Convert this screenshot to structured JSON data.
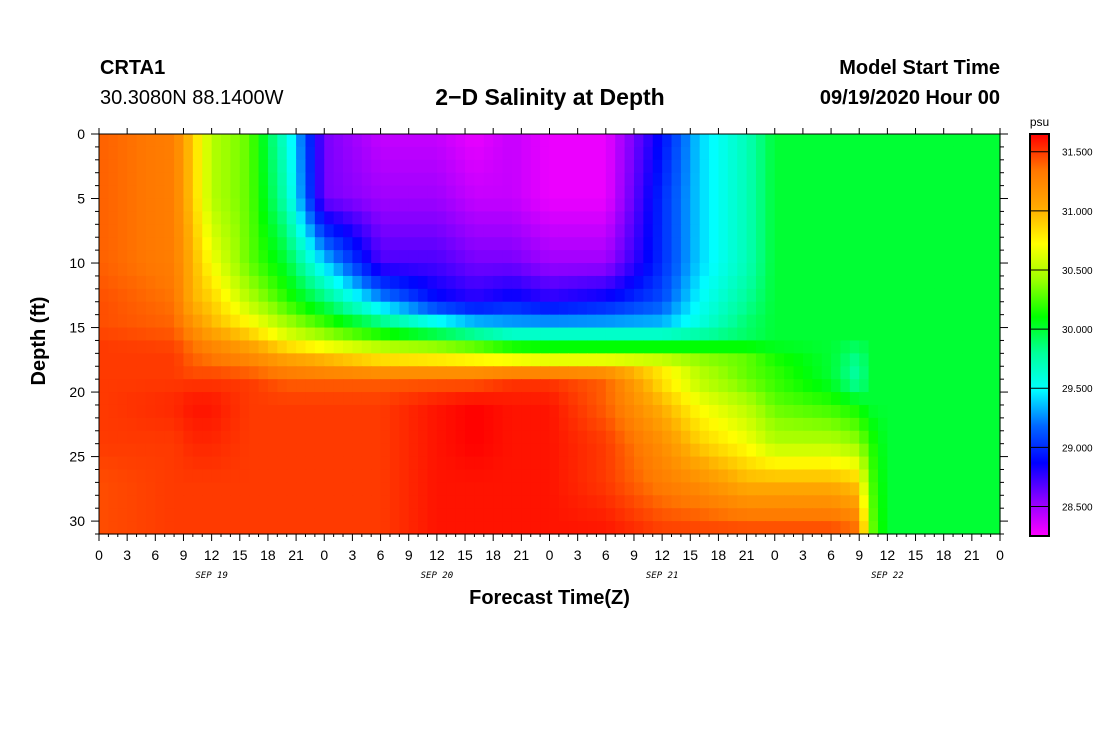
{
  "header": {
    "station": "CRTA1",
    "coords": "30.3080N 88.1400W",
    "title": "2−D Salinity at Depth",
    "model_start_label": "Model Start Time",
    "model_start_value": "09/19/2020 Hour 00"
  },
  "chart_data": {
    "type": "heatmap",
    "title": "2−D Salinity at Depth",
    "xlabel": "Forecast Time(Z)",
    "ylabel": "Depth (ft)",
    "units": "psu",
    "x_hours_range": [
      0,
      96
    ],
    "ylim": [
      0,
      31
    ],
    "y_inverted": true,
    "x_tick_labels": [
      "0",
      "3",
      "6",
      "9",
      "12",
      "15",
      "18",
      "21",
      "0",
      "3",
      "6",
      "9",
      "12",
      "15",
      "18",
      "21",
      "0",
      "3",
      "6",
      "9",
      "12",
      "15",
      "18",
      "21",
      "0",
      "3",
      "6",
      "9",
      "12",
      "15",
      "18",
      "21",
      "0"
    ],
    "y_tick_labels": [
      "0",
      "5",
      "10",
      "15",
      "20",
      "25",
      "30"
    ],
    "date_labels": [
      "SEP 19",
      "SEP 20",
      "SEP 21",
      "SEP 22"
    ],
    "colorbar": {
      "range": [
        28.25,
        31.65
      ],
      "tick_labels": [
        "31.500",
        "31.000",
        "30.500",
        "30.000",
        "29.500",
        "29.000",
        "28.500"
      ],
      "colors": [
        "#ff00ff",
        "#8800ff",
        "#0000ff",
        "#0066ff",
        "#00ffff",
        "#00ff99",
        "#00ff00",
        "#99ff00",
        "#ffff00",
        "#ffaa00",
        "#ff7700",
        "#ff0000"
      ]
    },
    "time_hours": [
      0,
      8,
      10,
      12,
      16,
      20,
      24,
      30,
      36,
      40,
      44,
      48,
      54,
      60,
      64,
      69,
      72,
      78,
      81,
      82,
      84
    ],
    "depth_ft": [
      0,
      5,
      10,
      13,
      15,
      16,
      17,
      18,
      19,
      21,
      24,
      27,
      31
    ],
    "salinity": [
      [
        31.4,
        31.3,
        30.9,
        30.5,
        30.3,
        29.6,
        28.6,
        28.4,
        28.4,
        28.3,
        28.4,
        28.3,
        28.3,
        28.9,
        29.4,
        29.7,
        30.0,
        30.0,
        30.0,
        30.0,
        30.0
      ],
      [
        31.4,
        31.3,
        30.9,
        30.5,
        30.3,
        29.7,
        28.6,
        28.5,
        28.5,
        28.4,
        28.4,
        28.3,
        28.3,
        29.0,
        29.4,
        29.7,
        30.0,
        30.0,
        30.0,
        30.0,
        30.0
      ],
      [
        31.4,
        31.3,
        31.0,
        30.7,
        30.3,
        30.0,
        29.4,
        28.7,
        28.7,
        28.6,
        28.6,
        28.5,
        28.5,
        29.0,
        29.4,
        29.7,
        30.0,
        30.0,
        30.0,
        30.0,
        30.0
      ],
      [
        31.45,
        31.35,
        31.0,
        30.9,
        30.5,
        30.2,
        29.9,
        29.3,
        28.9,
        28.8,
        28.9,
        28.8,
        28.9,
        29.1,
        29.5,
        29.8,
        30.0,
        30.0,
        30.0,
        30.0,
        30.0
      ],
      [
        31.45,
        31.4,
        31.2,
        31.0,
        30.8,
        30.5,
        30.3,
        30.0,
        29.7,
        29.5,
        29.4,
        29.4,
        29.4,
        29.4,
        29.6,
        29.9,
        30.0,
        30.0,
        30.0,
        30.0,
        30.0
      ],
      [
        31.5,
        31.45,
        31.3,
        31.2,
        31.0,
        30.7,
        30.5,
        30.3,
        30.2,
        30.1,
        29.9,
        29.9,
        29.9,
        29.9,
        29.9,
        29.9,
        30.0,
        30.0,
        30.0,
        30.0,
        30.0
      ],
      [
        31.5,
        31.5,
        31.4,
        31.3,
        31.2,
        31.0,
        30.9,
        30.7,
        30.6,
        30.5,
        30.4,
        30.3,
        30.3,
        30.3,
        30.3,
        30.3,
        30.1,
        30.0,
        29.8,
        30.0,
        30.0
      ],
      [
        31.5,
        31.5,
        31.4,
        31.4,
        31.3,
        31.2,
        31.1,
        31.0,
        31.0,
        31.0,
        31.0,
        31.0,
        31.0,
        30.8,
        30.5,
        30.3,
        30.2,
        30.0,
        29.8,
        30.0,
        30.0
      ],
      [
        31.5,
        31.5,
        31.5,
        31.5,
        31.5,
        31.4,
        31.4,
        31.4,
        31.4,
        31.4,
        31.5,
        31.5,
        31.4,
        30.8,
        30.5,
        30.3,
        30.2,
        30.0,
        29.7,
        30.0,
        30.0
      ],
      [
        31.5,
        31.55,
        31.6,
        31.6,
        31.5,
        31.5,
        31.5,
        31.5,
        31.6,
        31.65,
        31.6,
        31.6,
        31.4,
        31.0,
        30.7,
        30.5,
        30.3,
        30.2,
        30.1,
        30.0,
        30.0
      ],
      [
        31.5,
        31.5,
        31.55,
        31.55,
        31.5,
        31.5,
        31.5,
        31.5,
        31.6,
        31.65,
        31.6,
        31.6,
        31.5,
        31.2,
        30.9,
        30.7,
        30.5,
        30.5,
        30.4,
        30.2,
        30.0
      ],
      [
        31.45,
        31.5,
        31.5,
        31.5,
        31.5,
        31.5,
        31.5,
        31.5,
        31.6,
        31.6,
        31.6,
        31.6,
        31.5,
        31.3,
        31.2,
        31.0,
        31.0,
        31.0,
        30.9,
        30.3,
        30.0
      ],
      [
        31.45,
        31.5,
        31.5,
        31.5,
        31.5,
        31.5,
        31.5,
        31.5,
        31.6,
        31.6,
        31.6,
        31.6,
        31.6,
        31.5,
        31.5,
        31.5,
        31.5,
        31.5,
        31.4,
        30.4,
        30.0
      ]
    ]
  }
}
